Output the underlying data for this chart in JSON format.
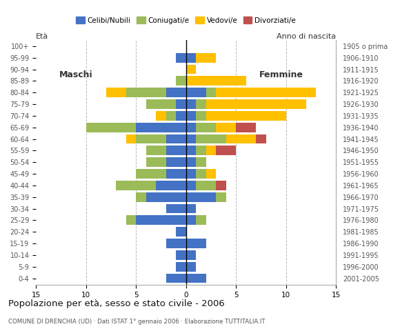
{
  "age_groups_bottom_to_top": [
    "0-4",
    "5-9",
    "10-14",
    "15-19",
    "20-24",
    "25-29",
    "30-34",
    "35-39",
    "40-44",
    "45-49",
    "50-54",
    "55-59",
    "60-64",
    "65-69",
    "70-74",
    "75-79",
    "80-84",
    "85-89",
    "90-94",
    "95-99",
    "100+"
  ],
  "birth_years_bottom_to_top": [
    "2001-2005",
    "1996-2000",
    "1991-1995",
    "1986-1990",
    "1981-1985",
    "1976-1980",
    "1971-1975",
    "1966-1970",
    "1961-1965",
    "1956-1960",
    "1951-1955",
    "1946-1950",
    "1941-1945",
    "1936-1940",
    "1931-1935",
    "1926-1930",
    "1921-1925",
    "1916-1920",
    "1911-1915",
    "1906-1910",
    "1905 o prima"
  ],
  "colors": {
    "celibe": "#4472C4",
    "coniugato": "#9BBB59",
    "vedovo": "#FFC000",
    "divorziato": "#C0504D"
  },
  "maschi": {
    "celibe": [
      2,
      1,
      1,
      2,
      1,
      5,
      2,
      4,
      3,
      2,
      2,
      2,
      2,
      5,
      1,
      1,
      2,
      0,
      0,
      1,
      0
    ],
    "coniugato": [
      0,
      0,
      0,
      0,
      0,
      1,
      0,
      1,
      4,
      3,
      2,
      2,
      3,
      5,
      1,
      3,
      4,
      1,
      0,
      0,
      0
    ],
    "vedovo": [
      0,
      0,
      0,
      0,
      0,
      0,
      0,
      0,
      0,
      0,
      0,
      0,
      1,
      0,
      1,
      0,
      2,
      0,
      0,
      0,
      0
    ],
    "divorziato": [
      0,
      0,
      0,
      0,
      0,
      0,
      0,
      0,
      0,
      0,
      0,
      0,
      0,
      0,
      0,
      0,
      0,
      0,
      0,
      0,
      0
    ]
  },
  "femmine": {
    "celibe": [
      2,
      1,
      1,
      2,
      0,
      1,
      1,
      3,
      1,
      1,
      1,
      1,
      1,
      1,
      1,
      1,
      2,
      0,
      0,
      1,
      0
    ],
    "coniugato": [
      0,
      0,
      0,
      0,
      0,
      1,
      0,
      1,
      2,
      1,
      1,
      1,
      3,
      2,
      1,
      1,
      1,
      0,
      0,
      0,
      0
    ],
    "vedovo": [
      0,
      0,
      0,
      0,
      0,
      0,
      0,
      0,
      0,
      1,
      0,
      1,
      3,
      2,
      8,
      10,
      10,
      6,
      1,
      2,
      0
    ],
    "divorziato": [
      0,
      0,
      0,
      0,
      0,
      0,
      0,
      0,
      1,
      0,
      0,
      2,
      1,
      2,
      0,
      0,
      0,
      0,
      0,
      0,
      0
    ]
  },
  "xlim": 15,
  "title": "Popolazione per età, sesso e stato civile - 2006",
  "subtitle": "COMUNE DI DRENCHIA (UD) · Dati ISTAT 1° gennaio 2006 · Elaborazione TUTTITALIA.IT",
  "ylabel_left": "Età",
  "ylabel_right": "Anno di nascita",
  "label_maschi": "Maschi",
  "label_femmine": "Femmine",
  "legend_labels": [
    "Celibi/Nubili",
    "Coniugati/e",
    "Vedovi/e",
    "Divorziati/e"
  ],
  "background_color": "#ffffff",
  "grid_color": "#bbbbbb"
}
